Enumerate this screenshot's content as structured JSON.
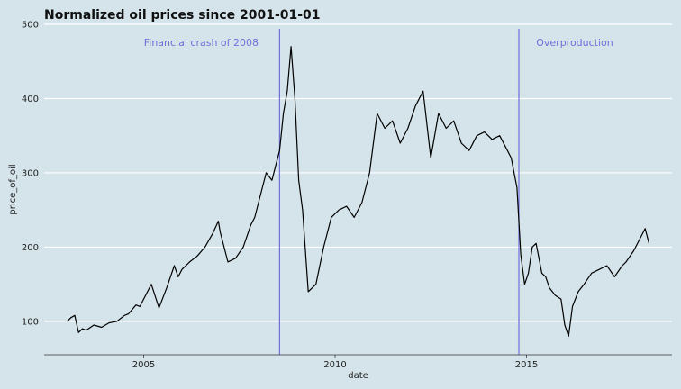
{
  "chart_data": {
    "type": "line",
    "title": "Normalized oil prices since 2001-01-01",
    "xlabel": "date",
    "ylabel": "price_of_oil",
    "xlim": [
      2002.4,
      2018.8
    ],
    "ylim": [
      55,
      500
    ],
    "x_ticks": [
      {
        "value": 2005,
        "label": "2005"
      },
      {
        "value": 2010,
        "label": "2010"
      },
      {
        "value": 2015,
        "label": "2015"
      }
    ],
    "y_ticks": [
      {
        "value": 100,
        "label": "100"
      },
      {
        "value": 200,
        "label": "200"
      },
      {
        "value": 300,
        "label": "300"
      },
      {
        "value": 400,
        "label": "400"
      },
      {
        "value": 500,
        "label": "500"
      }
    ],
    "grid": true,
    "line_color": "#000000",
    "background_color": "#d5e4eb",
    "grid_color": "#ffffff",
    "annotations": [
      {
        "x": 2008.55,
        "label": "Financial crash of 2008",
        "color": "#7070d8"
      },
      {
        "x": 2014.8,
        "label": "Overproduction",
        "color": "#7070d8"
      }
    ],
    "series": [
      {
        "x": [
          2003.0,
          2003.1,
          2003.2,
          2003.3,
          2003.4,
          2003.5,
          2003.7,
          2003.9,
          2004.1,
          2004.3,
          2004.5,
          2004.6,
          2004.8,
          2004.9,
          2005.0,
          2005.2,
          2005.4,
          2005.6,
          2005.8,
          2005.9,
          2006.0,
          2006.2,
          2006.4,
          2006.6,
          2006.8,
          2006.95,
          2007.0,
          2007.2,
          2007.4,
          2007.6,
          2007.8,
          2007.9,
          2008.0,
          2008.2,
          2008.35,
          2008.45,
          2008.55,
          2008.65,
          2008.75,
          2008.85,
          2008.95,
          2009.05,
          2009.15,
          2009.3,
          2009.5,
          2009.7,
          2009.9,
          2010.1,
          2010.3,
          2010.5,
          2010.7,
          2010.9,
          2011.1,
          2011.3,
          2011.5,
          2011.7,
          2011.9,
          2012.1,
          2012.3,
          2012.5,
          2012.7,
          2012.9,
          2013.1,
          2013.3,
          2013.5,
          2013.7,
          2013.9,
          2014.1,
          2014.3,
          2014.5,
          2014.6,
          2014.75,
          2014.85,
          2014.95,
          2015.05,
          2015.15,
          2015.25,
          2015.4,
          2015.5,
          2015.6,
          2015.75,
          2015.9,
          2016.0,
          2016.1,
          2016.2,
          2016.35,
          2016.5,
          2016.7,
          2016.9,
          2017.1,
          2017.3,
          2017.5,
          2017.6,
          2017.8,
          2018.0,
          2018.1,
          2018.2
        ],
        "y": [
          100,
          105,
          108,
          85,
          90,
          88,
          95,
          92,
          98,
          100,
          108,
          110,
          122,
          120,
          130,
          150,
          118,
          145,
          175,
          160,
          170,
          180,
          188,
          200,
          218,
          235,
          220,
          180,
          185,
          200,
          230,
          240,
          260,
          300,
          290,
          310,
          330,
          380,
          410,
          470,
          400,
          290,
          250,
          140,
          150,
          200,
          240,
          250,
          255,
          240,
          260,
          300,
          380,
          360,
          370,
          340,
          360,
          390,
          410,
          320,
          380,
          360,
          370,
          340,
          330,
          350,
          355,
          345,
          350,
          330,
          320,
          280,
          190,
          150,
          165,
          200,
          205,
          165,
          160,
          145,
          135,
          130,
          95,
          80,
          120,
          140,
          150,
          165,
          170,
          175,
          160,
          175,
          180,
          195,
          215,
          225,
          205
        ]
      }
    ]
  }
}
